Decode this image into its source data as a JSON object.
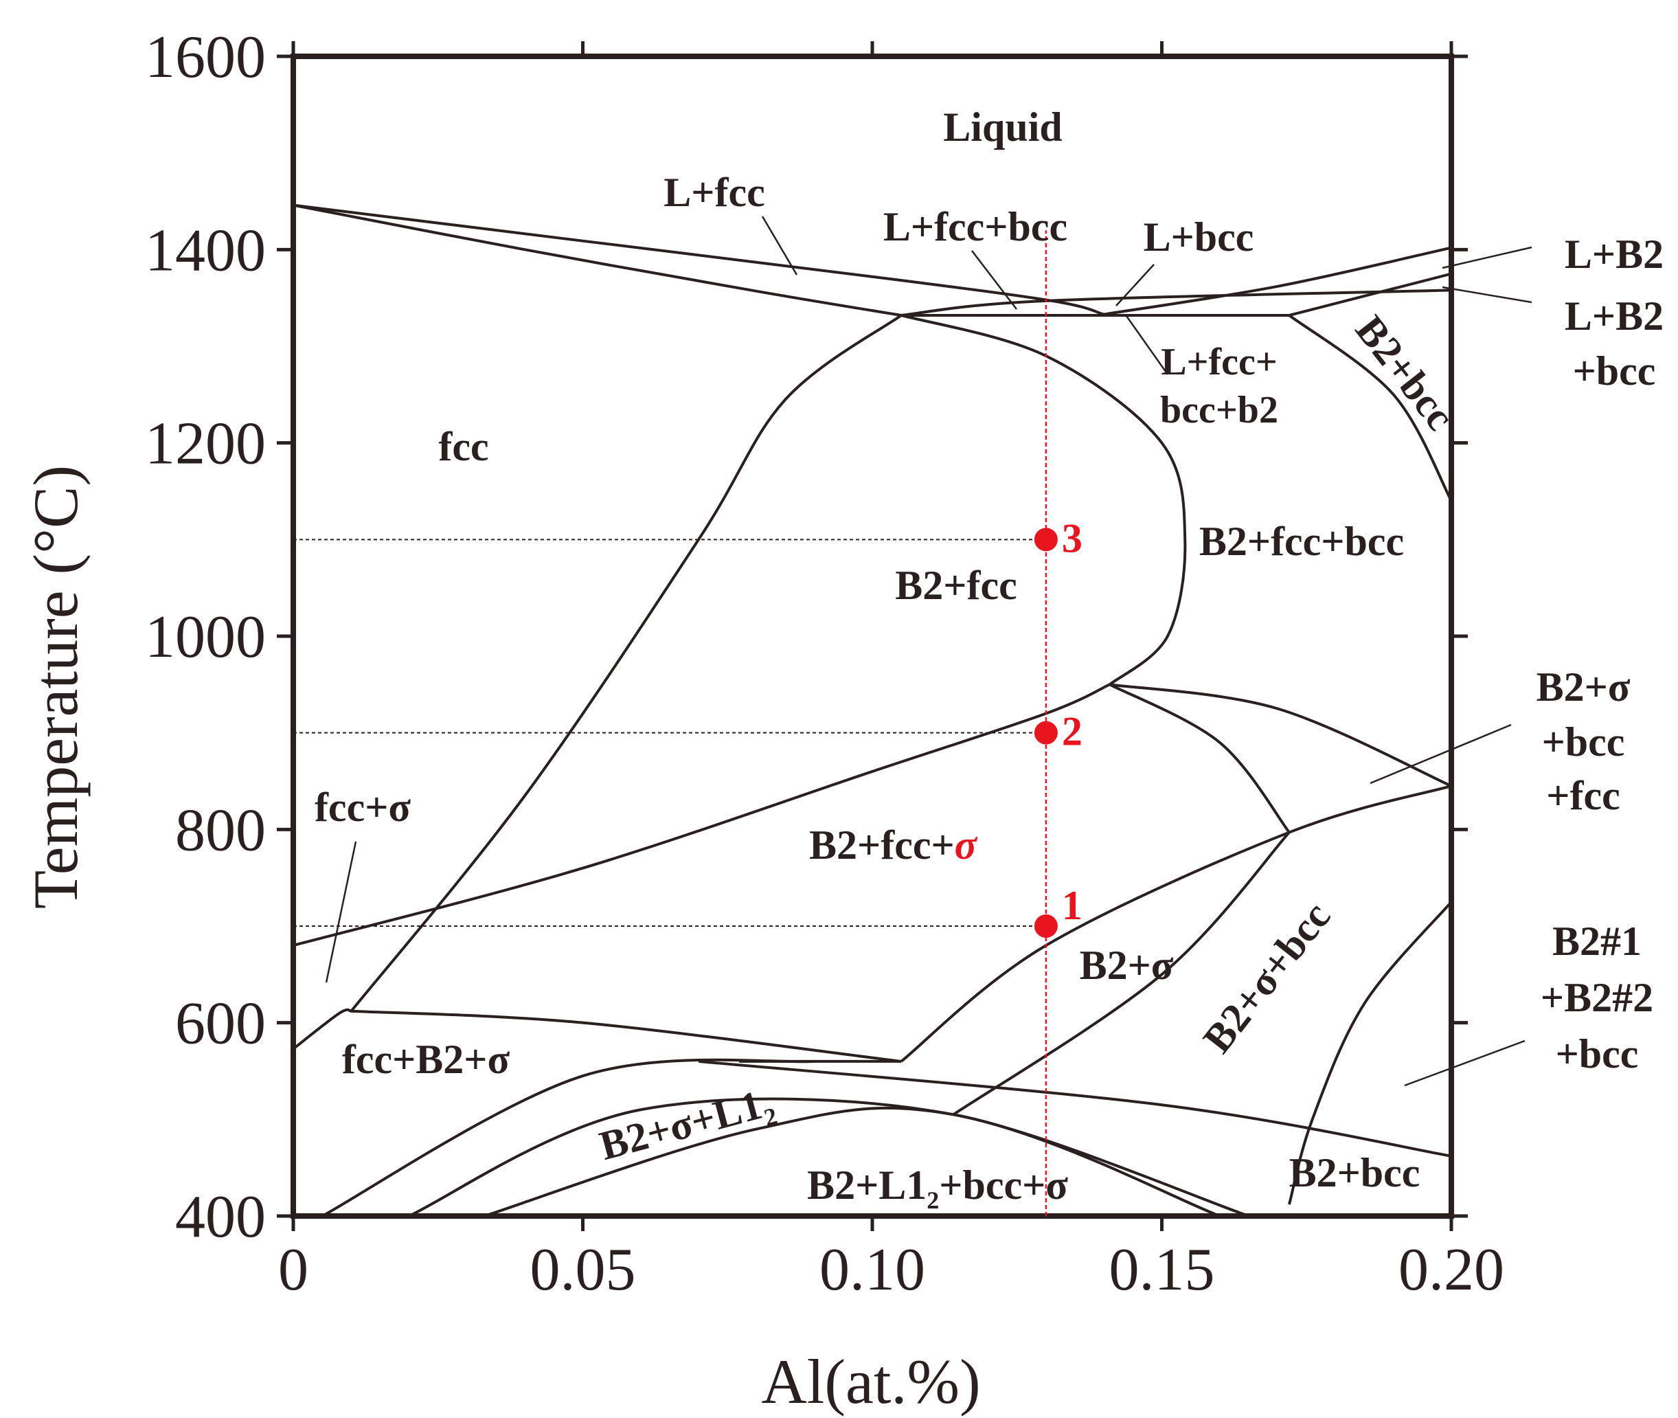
{
  "chart_data": {
    "type": "phase_diagram",
    "title": "",
    "xlabel": "Al(at.%)",
    "ylabel": "Temperature (°C)",
    "xlim": [
      0,
      0.2
    ],
    "ylim": [
      400,
      1600
    ],
    "x_ticks": [
      "0",
      "0.05",
      "0.10",
      "0.15",
      "0.20"
    ],
    "y_ticks": [
      "400",
      "600",
      "800",
      "1000",
      "1200",
      "1400",
      "1600"
    ],
    "phase_boundaries": [
      {
        "name": "liquidus",
        "points": [
          [
            0,
            1446
          ],
          [
            0.05,
            1409
          ],
          [
            0.1,
            1372
          ],
          [
            0.131,
            1347
          ],
          [
            0.14,
            1333
          ]
        ]
      },
      {
        "name": "fcc-solidus",
        "points": [
          [
            0,
            1446
          ],
          [
            0.04,
            1400
          ],
          [
            0.08,
            1357
          ],
          [
            0.105,
            1332
          ]
        ]
      },
      {
        "name": "fcc-bcc-tie",
        "points": [
          [
            0.105,
            1332
          ],
          [
            0.13,
            1347
          ],
          [
            0.2,
            1358
          ]
        ]
      },
      {
        "name": "three-phase-line-1332",
        "points": [
          [
            0.105,
            1332
          ],
          [
            0.172,
            1332
          ]
        ]
      },
      {
        "name": "bcc-liquidus",
        "points": [
          [
            0.14,
            1333
          ],
          [
            0.17,
            1362
          ],
          [
            0.2,
            1402
          ]
        ]
      },
      {
        "name": "b2-liquidus",
        "points": [
          [
            0.172,
            1332
          ],
          [
            0.2,
            1375
          ]
        ]
      },
      {
        "name": "fcc-solvus",
        "points": [
          [
            0.105,
            1332
          ],
          [
            0.085,
            1245
          ],
          [
            0.07,
            1100
          ],
          [
            0.04,
            835
          ],
          [
            0.01,
            612
          ]
        ]
      },
      {
        "name": "b2-fcc-bcc",
        "points": [
          [
            0.105,
            1332
          ],
          [
            0.13,
            1290
          ],
          [
            0.15,
            1200
          ],
          [
            0.154,
            1100
          ],
          [
            0.151,
            1000
          ],
          [
            0.141,
            950
          ]
        ]
      },
      {
        "name": "b2-bcc",
        "points": [
          [
            0.172,
            1332
          ],
          [
            0.19,
            1250
          ],
          [
            0.2,
            1140
          ]
        ]
      },
      {
        "name": "sigma-solvus-high",
        "points": [
          [
            0,
            680
          ],
          [
            0.05,
            760
          ],
          [
            0.1,
            860
          ],
          [
            0.13,
            920
          ],
          [
            0.141,
            950
          ]
        ]
      },
      {
        "name": "fcc-b2-sigma-top",
        "points": [
          [
            0.141,
            950
          ],
          [
            0.17,
            925
          ],
          [
            0.2,
            845
          ]
        ]
      },
      {
        "name": "b2-sigma-bcc-upper",
        "points": [
          [
            0.141,
            950
          ],
          [
            0.16,
            890
          ],
          [
            0.172,
            797
          ]
        ]
      },
      {
        "name": "b2-sigma-bcc-lower",
        "points": [
          [
            0.172,
            797
          ],
          [
            0.15,
            650
          ],
          [
            0.114,
            505
          ]
        ]
      },
      {
        "name": "b2-sigma-edge",
        "points": [
          [
            0.105,
            560
          ],
          [
            0.13,
            680
          ],
          [
            0.172,
            797
          ],
          [
            0.2,
            845
          ]
        ]
      },
      {
        "name": "b2-bcc-lower",
        "points": [
          [
            0.2,
            725
          ],
          [
            0.185,
            620
          ],
          [
            0.176,
            500
          ],
          [
            0.172,
            412
          ]
        ]
      },
      {
        "name": "fcc-sigma-low",
        "points": [
          [
            0,
            573
          ],
          [
            0.008,
            610
          ],
          [
            0.01,
            612
          ]
        ]
      },
      {
        "name": "three-phase-610",
        "points": [
          [
            0.01,
            612
          ],
          [
            0.05,
            600
          ],
          [
            0.105,
            560
          ]
        ]
      },
      {
        "name": "eutectoid-560",
        "points": [
          [
            0.077,
            560
          ],
          [
            0.105,
            560
          ]
        ]
      },
      {
        "name": "l12-arc",
        "points": [
          [
            0.005,
            400
          ],
          [
            0.05,
            545
          ],
          [
            0.09,
            560
          ]
        ]
      },
      {
        "name": "l12-inner-arc",
        "points": [
          [
            0.02,
            400
          ],
          [
            0.06,
            510
          ],
          [
            0.114,
            505
          ],
          [
            0.16,
            400
          ]
        ]
      },
      {
        "name": "b2-l12-arc",
        "points": [
          [
            0.033,
            400
          ],
          [
            0.08,
            490
          ],
          [
            0.114,
            505
          ],
          [
            0.165,
            400
          ]
        ]
      },
      {
        "name": "low-boundary-bcc",
        "points": [
          [
            0.07,
            560
          ],
          [
            0.15,
            515
          ],
          [
            0.2,
            462
          ]
        ]
      }
    ],
    "composition_line": {
      "x": 0.13,
      "y_range": [
        400,
        1420
      ]
    },
    "points": [
      {
        "label": "1",
        "x": 0.13,
        "y": 700
      },
      {
        "label": "2",
        "x": 0.13,
        "y": 900
      },
      {
        "label": "3",
        "x": 0.13,
        "y": 1100
      }
    ],
    "region_labels": [
      {
        "text": "Liquid"
      },
      {
        "text": "L+fcc"
      },
      {
        "text": "L+fcc+bcc"
      },
      {
        "text": "L+bcc"
      },
      {
        "text": "L+B2"
      },
      {
        "text": "L+B2"
      },
      {
        "text": "+bcc"
      },
      {
        "text": "L+fcc+"
      },
      {
        "text": "bcc+b2"
      },
      {
        "text": "B2+bcc"
      },
      {
        "text": "fcc"
      },
      {
        "text": "B2+fcc+bcc"
      },
      {
        "text": "B2+fcc"
      },
      {
        "text": "B2+σ"
      },
      {
        "text": "+bcc"
      },
      {
        "text": "+fcc"
      },
      {
        "text": "fcc+σ"
      },
      {
        "text": "B2+fcc+"
      },
      {
        "text": "σ"
      },
      {
        "text": "B2+σ"
      },
      {
        "text": "B2+σ+bcc"
      },
      {
        "text": "B2#1"
      },
      {
        "text": "+B2#2"
      },
      {
        "text": "+bcc"
      },
      {
        "text": "fcc+B2+σ"
      },
      {
        "text": "B2+σ+L1"
      },
      {
        "text": "2"
      },
      {
        "text": "B2+L1"
      },
      {
        "text": "2"
      },
      {
        "text": "+bcc+σ"
      },
      {
        "text": "B2+bcc"
      }
    ],
    "colors": {
      "line": "#2a2020",
      "highlight": "#e8141e"
    }
  }
}
